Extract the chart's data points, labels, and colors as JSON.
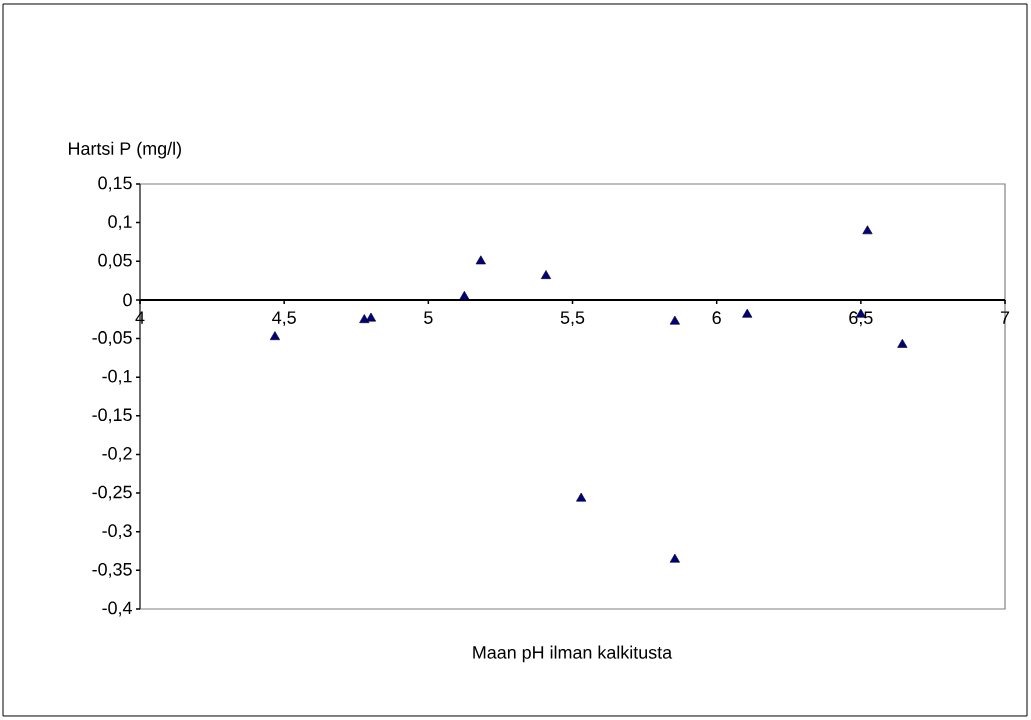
{
  "chart_data": {
    "type": "scatter",
    "xlabel": "Maan pH ilman kalkitusta",
    "ylabel": "Hartsi P (mg/l)",
    "x": [
      4.468,
      4.778,
      4.801,
      5.125,
      5.182,
      5.408,
      5.53,
      5.855,
      5.855,
      6.106,
      6.5,
      6.523,
      6.644
    ],
    "series": [
      {
        "color": "#000080",
        "values": [
          -0.048,
          -0.026,
          -0.024,
          0.004,
          0.05,
          0.031,
          -0.257,
          -0.336,
          -0.028,
          -0.019,
          -0.019,
          0.089,
          -0.058
        ]
      }
    ],
    "marker": "triangle",
    "grid": false,
    "legend": false,
    "xlim": [
      4,
      7
    ],
    "ylim": [
      -0.4,
      0.15
    ],
    "xticks": [
      4,
      {
        "value": 4.5,
        "label": "4,5"
      },
      5,
      {
        "value": 5.5,
        "label": "5,5"
      },
      6,
      {
        "value": 6.5,
        "label": "6,5"
      },
      7
    ],
    "yticks": [
      {
        "value": -0.4,
        "label": "-0,4"
      },
      {
        "value": -0.35,
        "label": "-0,35"
      },
      {
        "value": -0.3,
        "label": "-0,3"
      },
      {
        "value": -0.25,
        "label": "-0,25"
      },
      {
        "value": -0.2,
        "label": "-0,2"
      },
      {
        "value": -0.15,
        "label": "-0,15"
      },
      {
        "value": -0.1,
        "label": "-0,1"
      },
      {
        "value": -0.05,
        "label": "-0,05"
      },
      0,
      {
        "value": 0.05,
        "label": "0,05"
      },
      {
        "value": 0.1,
        "label": "0,1"
      },
      {
        "value": 0.15,
        "label": "0,15"
      }
    ]
  }
}
